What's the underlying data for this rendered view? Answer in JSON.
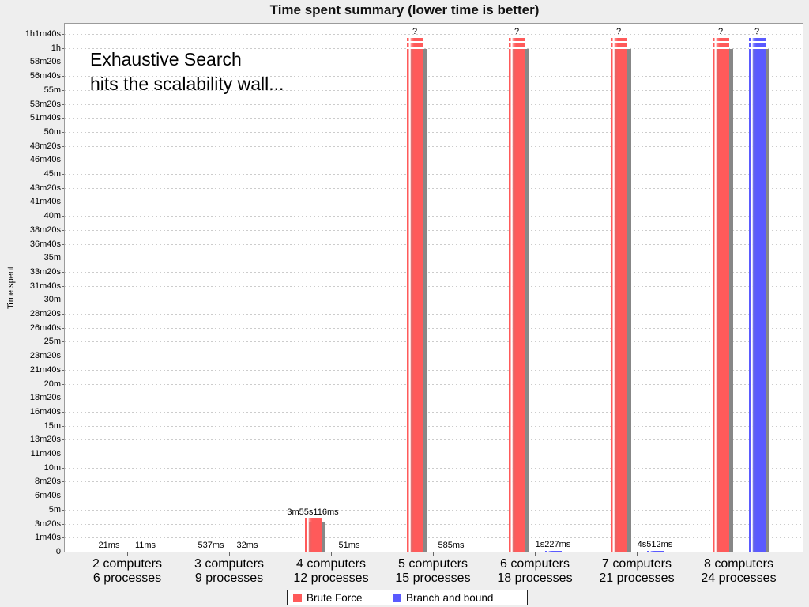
{
  "title": "Time spent summary (lower time is better)",
  "annotation": {
    "line1": "Exhaustive Search",
    "line2": "hits the scalability wall..."
  },
  "legend": {
    "items": [
      {
        "label": "Brute Force",
        "color": "#ff5a5a"
      },
      {
        "label": "Branch and bound",
        "color": "#5a5aff"
      }
    ]
  },
  "colors": {
    "brute_force": "#ff5a5a",
    "branch_and_bound": "#5a5aff",
    "bar_shadow": "#878787",
    "grid_line": "#cccccc",
    "plot_border": "#9b9b9b",
    "page_background": "#eeeeee",
    "plot_background": "#ffffff",
    "legend_border": "#222222",
    "text": "#000000"
  },
  "chart_data": {
    "type": "bar",
    "title": "Time spent summary (lower time is better)",
    "xlabel": "",
    "ylabel": "Time spent",
    "ylim_seconds": [
      0,
      3700
    ],
    "ytick_step_seconds": 100,
    "grid": "horizontal-dashed",
    "legend_position": "bottom",
    "failed_bar_drawn_seconds": 3670,
    "ytick_labels": [
      "0",
      "1m40s",
      "3m20s",
      "5m",
      "6m40s",
      "8m20s",
      "10m",
      "11m40s",
      "13m20s",
      "15m",
      "16m40s",
      "18m20s",
      "20m",
      "21m40s",
      "23m20s",
      "25m",
      "26m40s",
      "28m20s",
      "30m",
      "31m40s",
      "33m20s",
      "35m",
      "36m40s",
      "38m20s",
      "40m",
      "41m40s",
      "43m20s",
      "45m",
      "46m40s",
      "48m20s",
      "50m",
      "51m40s",
      "53m20s",
      "55m",
      "56m40s",
      "58m20s",
      "1h",
      "1h1m40s"
    ],
    "categories": [
      {
        "line1": "2 computers",
        "line2": "6 processes"
      },
      {
        "line1": "3 computers",
        "line2": "9 processes"
      },
      {
        "line1": "4 computers",
        "line2": "12 processes"
      },
      {
        "line1": "5 computers",
        "line2": "15 processes"
      },
      {
        "line1": "6 computers",
        "line2": "18 processes"
      },
      {
        "line1": "7 computers",
        "line2": "21 processes"
      },
      {
        "line1": "8 computers",
        "line2": "24 processes"
      }
    ],
    "series": [
      {
        "name": "Brute Force",
        "color": "#ff5a5a",
        "points": [
          {
            "label": "21ms",
            "seconds": 0.021,
            "failed": false
          },
          {
            "label": "537ms",
            "seconds": 0.537,
            "failed": false
          },
          {
            "label": "3m55s116ms",
            "seconds": 235.116,
            "failed": false
          },
          {
            "label": "?",
            "seconds": null,
            "failed": true
          },
          {
            "label": "?",
            "seconds": null,
            "failed": true
          },
          {
            "label": "?",
            "seconds": null,
            "failed": true
          },
          {
            "label": "?",
            "seconds": null,
            "failed": true
          }
        ]
      },
      {
        "name": "Branch and bound",
        "color": "#5a5aff",
        "points": [
          {
            "label": "11ms",
            "seconds": 0.011,
            "failed": false
          },
          {
            "label": "32ms",
            "seconds": 0.032,
            "failed": false
          },
          {
            "label": "51ms",
            "seconds": 0.051,
            "failed": false
          },
          {
            "label": "585ms",
            "seconds": 0.585,
            "failed": false
          },
          {
            "label": "1s227ms",
            "seconds": 1.227,
            "failed": false
          },
          {
            "label": "4s512ms",
            "seconds": 4.512,
            "failed": false
          },
          {
            "label": "?",
            "seconds": null,
            "failed": true
          }
        ]
      }
    ]
  }
}
